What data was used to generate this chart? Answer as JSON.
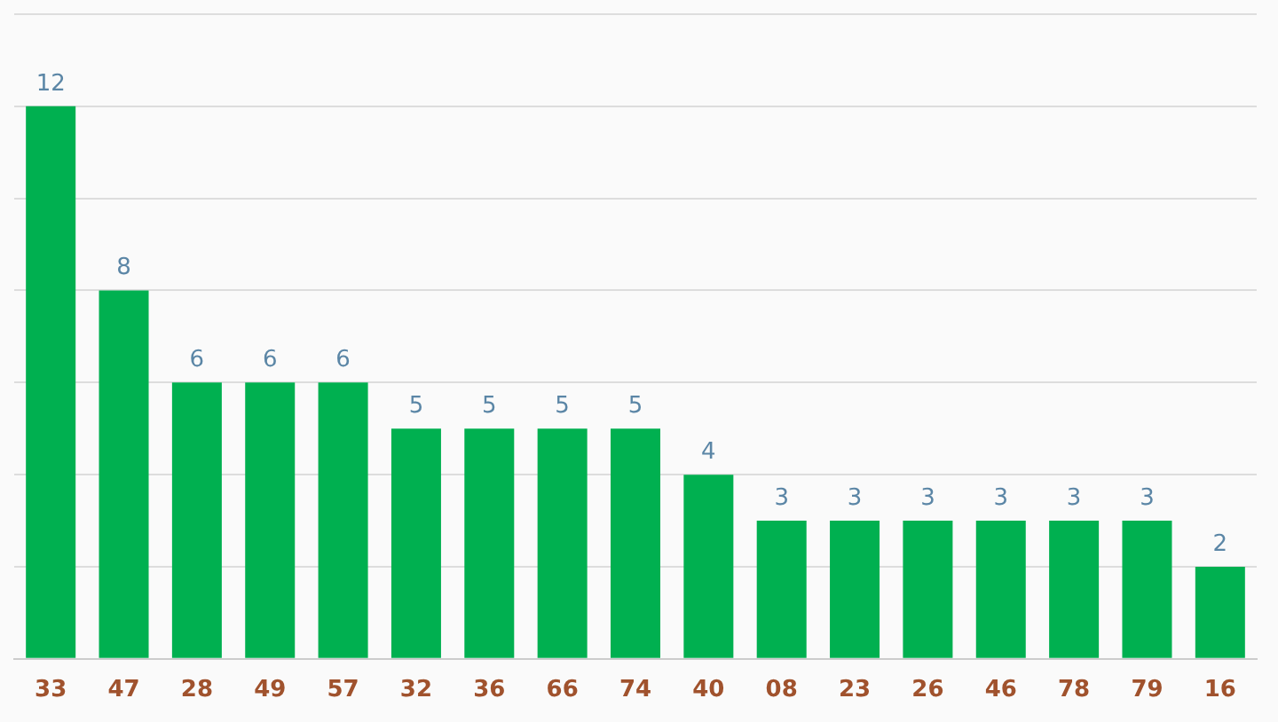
{
  "chart_data": {
    "type": "bar",
    "categories": [
      "33",
      "47",
      "28",
      "49",
      "57",
      "32",
      "36",
      "66",
      "74",
      "40",
      "08",
      "23",
      "26",
      "46",
      "78",
      "79",
      "16"
    ],
    "values": [
      12,
      8,
      6,
      6,
      6,
      5,
      5,
      5,
      5,
      4,
      3,
      3,
      3,
      3,
      3,
      3,
      2
    ],
    "color": "#00b050",
    "ylim": [
      0,
      14
    ],
    "yticks": [
      {
        "value": 0,
        "label": null
      },
      {
        "value": 2,
        "label": null
      },
      {
        "value": 4,
        "label": null
      },
      {
        "value": 6,
        "label": null
      },
      {
        "value": 8,
        "label": null
      },
      {
        "value": 10,
        "label": null
      },
      {
        "value": 12,
        "label": null
      },
      {
        "value": 14,
        "label": null
      }
    ],
    "tick_labels": "x",
    "grid": "y",
    "data_labels": true,
    "legend": false
  }
}
